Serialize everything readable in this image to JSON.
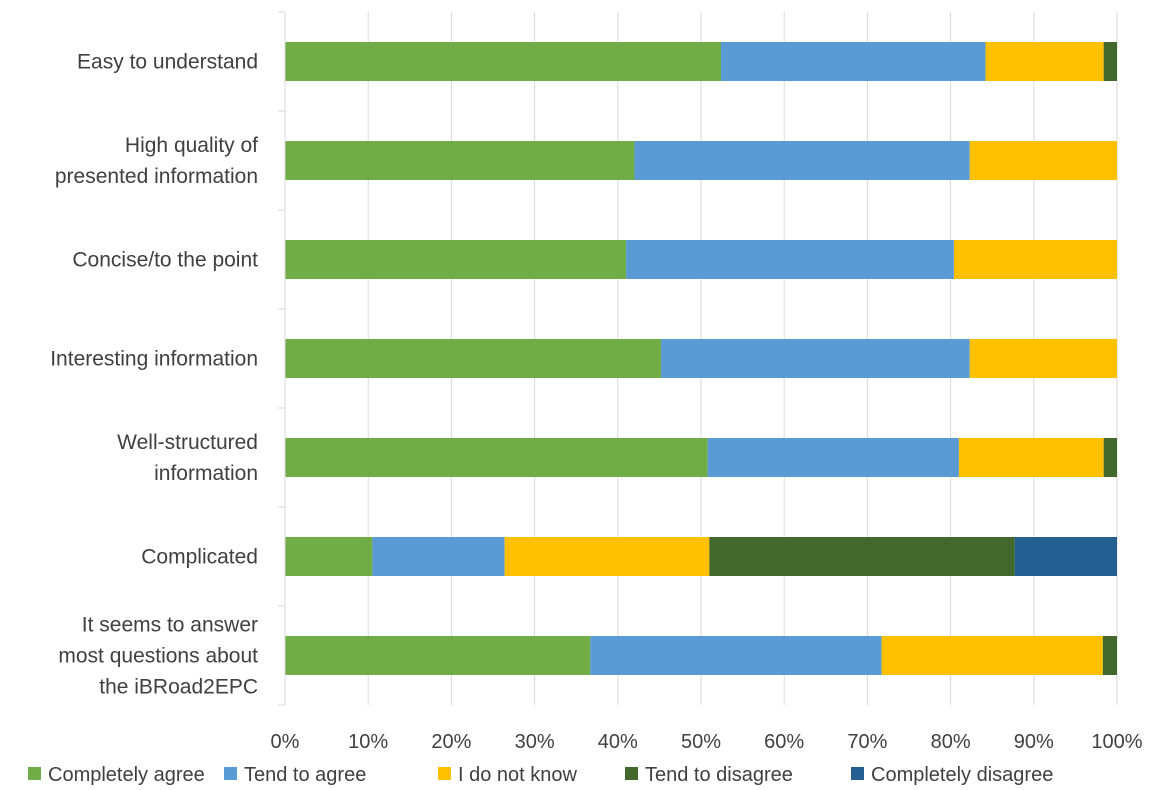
{
  "chart_data": {
    "type": "bar",
    "orientation": "horizontal",
    "stacked": true,
    "normalized_percent": true,
    "categories": [
      [
        "Easy to understand"
      ],
      [
        "High quality of",
        "presented information"
      ],
      [
        "Concise/to the point"
      ],
      [
        "Interesting information"
      ],
      [
        "Well-structured",
        "information"
      ],
      [
        "Complicated"
      ],
      [
        "It seems to answer",
        "most questions about",
        "the iBRoad2EPC"
      ]
    ],
    "series": [
      {
        "name": "Completely agree",
        "color": "#70ad47",
        "values": [
          52.4,
          42.0,
          41.0,
          45.2,
          50.8,
          10.5,
          36.7
        ]
      },
      {
        "name": "Tend to agree",
        "color": "#5b9bd5",
        "values": [
          31.8,
          40.3,
          39.4,
          37.1,
          30.2,
          15.9,
          35.0
        ]
      },
      {
        "name": "I do not know",
        "color": "#ffc000",
        "values": [
          14.2,
          17.7,
          19.6,
          17.7,
          17.4,
          24.6,
          26.6
        ]
      },
      {
        "name": "Tend to disagree",
        "color": "#43682b",
        "values": [
          1.6,
          0,
          0,
          0,
          1.6,
          36.7,
          1.7
        ]
      },
      {
        "name": "Completely disagree",
        "color": "#255e91",
        "values": [
          0,
          0,
          0,
          0,
          0,
          12.3,
          0
        ]
      }
    ],
    "x_ticks": [
      "0%",
      "10%",
      "20%",
      "30%",
      "40%",
      "50%",
      "60%",
      "70%",
      "80%",
      "90%",
      "100%"
    ],
    "xlim": [
      0,
      100
    ],
    "grid": true,
    "legend_position": "bottom"
  }
}
